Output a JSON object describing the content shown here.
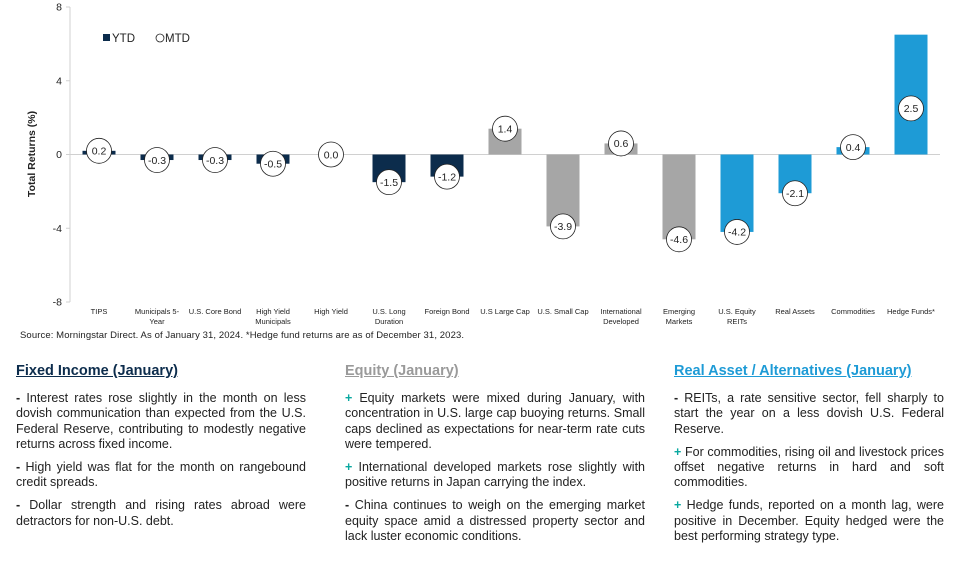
{
  "chart_data": {
    "type": "bar",
    "ylabel": "Total Returns (%)",
    "ylim": [
      -8,
      8
    ],
    "yticks": [
      -8,
      -4,
      0,
      4,
      8
    ],
    "grid": false,
    "legend": {
      "position": "top-left",
      "entries": [
        {
          "label": "YTD",
          "marker": "square",
          "color": "#0c2c4c"
        },
        {
          "label": "MTD",
          "marker": "circle",
          "color": "#ffffff"
        }
      ]
    },
    "categories": [
      "TIPS",
      "Municipals 5-Year",
      "U.S. Core Bond",
      "High Yield Municipals",
      "High Yield",
      "U.S. Long Duration",
      "Foreign Bond",
      "U.S Large Cap",
      "U.S. Small Cap",
      "International Developed",
      "Emerging Markets",
      "U.S. Equity REITs",
      "Real Assets",
      "Commodities",
      "Hedge Funds*"
    ],
    "category_lines": [
      [
        "TIPS"
      ],
      [
        "Municipals 5-",
        "Year"
      ],
      [
        "U.S. Core Bond"
      ],
      [
        "High Yield",
        "Municipals"
      ],
      [
        "High Yield"
      ],
      [
        "U.S. Long",
        "Duration"
      ],
      [
        "Foreign Bond"
      ],
      [
        "U.S Large Cap"
      ],
      [
        "U.S. Small Cap"
      ],
      [
        "International",
        "Developed"
      ],
      [
        "Emerging",
        "Markets"
      ],
      [
        "U.S. Equity",
        "REITs"
      ],
      [
        "Real Assets"
      ],
      [
        "Commodities"
      ],
      [
        "Hedge Funds*"
      ]
    ],
    "series": [
      {
        "name": "YTD",
        "values": [
          0.2,
          -0.3,
          -0.3,
          -0.5,
          0.0,
          -1.5,
          -1.2,
          1.4,
          -3.9,
          0.6,
          -4.6,
          -4.2,
          -2.1,
          0.4,
          6.5
        ]
      },
      {
        "name": "MTD",
        "values": [
          0.2,
          -0.3,
          -0.3,
          -0.5,
          0.0,
          -1.5,
          -1.2,
          1.4,
          -3.9,
          0.6,
          -4.6,
          -4.2,
          -2.1,
          0.4,
          2.5
        ]
      }
    ],
    "bar_colors": [
      "#0c2c4c",
      "#0c2c4c",
      "#0c2c4c",
      "#0c2c4c",
      "#0c2c4c",
      "#0c2c4c",
      "#0c2c4c",
      "#a6a6a6",
      "#a6a6a6",
      "#a6a6a6",
      "#a6a6a6",
      "#1e9bd6",
      "#1e9bd6",
      "#1e9bd6",
      "#1e9bd6"
    ]
  },
  "source": "Source: Morningstar Direct. As of January 31, 2024. *Hedge fund returns are as of December 31, 2023.",
  "columns": {
    "fixed_income": {
      "title": "Fixed Income (January)",
      "bullets": [
        "Interest rates rose slightly in the month on less dovish communication than expected from the U.S. Federal Reserve, contributing to modestly negative returns across fixed income.",
        "High yield was flat for the month on rangebound credit spreads.",
        "Dollar strength and rising rates abroad were detractors for non-U.S. debt."
      ]
    },
    "equity": {
      "title": "Equity (January)",
      "bullets": [
        "Equity markets were mixed during January, with concentration in U.S. large cap buoying returns. Small caps declined as expectations for near-term rate cuts were tempered.",
        "International developed markets rose slightly with positive returns in Japan carrying the index.",
        "China continues to weigh on the emerging market equity space amid a distressed property sector and lack luster economic conditions."
      ]
    },
    "real_assets": {
      "title": "Real Asset / Alternatives (January)",
      "bullets": [
        "REITs, a rate sensitive sector, fell sharply to start the year on a less dovish U.S. Federal Reserve.",
        "For commodities, rising oil and livestock prices offset negative returns in hard and soft commodities.",
        "Hedge funds, reported on a month lag, were positive in December. Equity hedged were the best performing strategy type."
      ]
    }
  },
  "markers": {
    "minus": "-",
    "plus": "+"
  }
}
